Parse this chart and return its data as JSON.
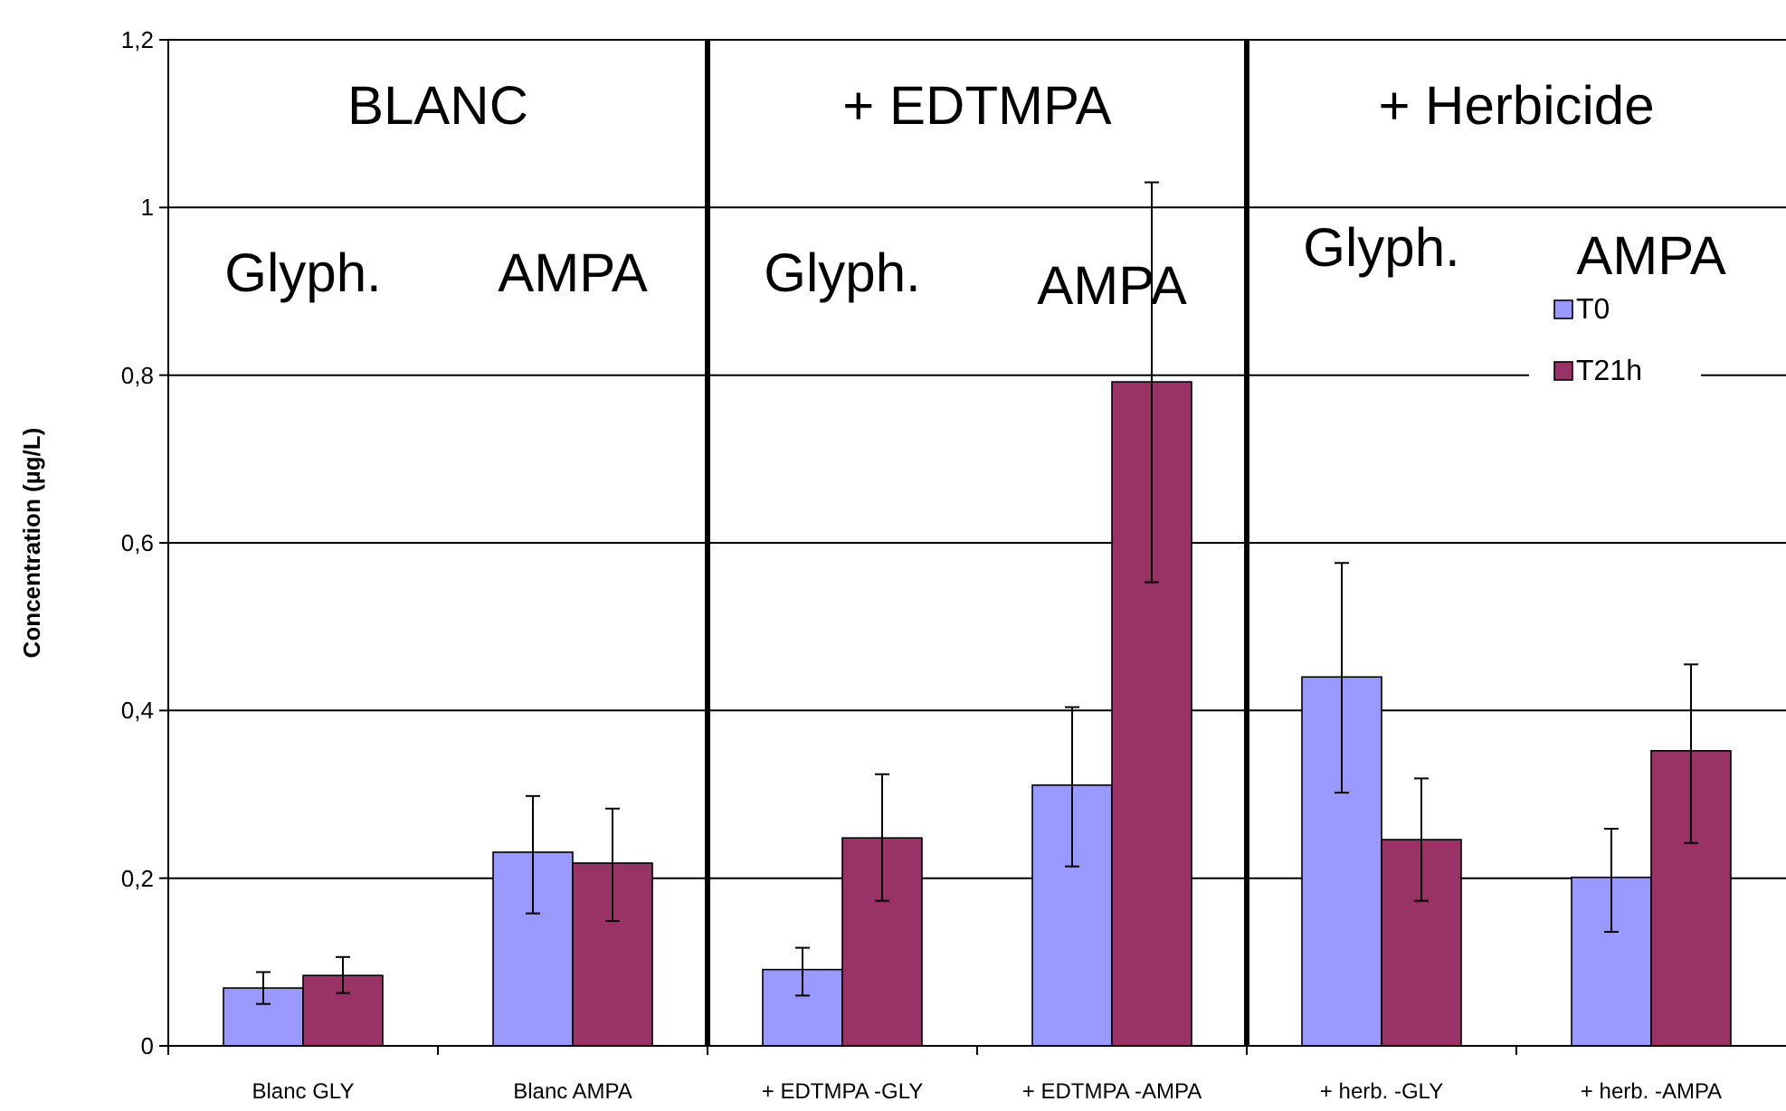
{
  "chart_data": {
    "type": "bar",
    "categories": [
      "Blanc GLY",
      "Blanc AMPA",
      "+ EDTMPA -GLY",
      "+ EDTMPA -AMPA",
      "+ herb. -GLY",
      "+ herb. -AMPA"
    ],
    "series": [
      {
        "name": "T0",
        "color": "#9999ff",
        "values": [
          0.069,
          0.231,
          0.091,
          0.311,
          0.44,
          0.201
        ],
        "errors": [
          [
            0.05,
            0.088
          ],
          [
            0.158,
            0.298
          ],
          [
            0.06,
            0.117
          ],
          [
            0.214,
            0.404
          ],
          [
            0.302,
            0.576
          ],
          [
            0.136,
            0.259
          ]
        ]
      },
      {
        "name": "T21h",
        "color": "#993366",
        "values": [
          0.084,
          0.218,
          0.248,
          0.792,
          0.246,
          0.352
        ],
        "errors": [
          [
            0.063,
            0.106
          ],
          [
            0.149,
            0.283
          ],
          [
            0.173,
            0.324
          ],
          [
            0.553,
            1.03
          ],
          [
            0.173,
            0.319
          ],
          [
            0.242,
            0.455
          ]
        ]
      }
    ],
    "ylabel": "Concentration  (µg/L)",
    "ylim": [
      0,
      1.2
    ],
    "yticks": [
      {
        "value": 0,
        "label": "0"
      },
      {
        "value": 0.2,
        "label": "0,2"
      },
      {
        "value": 0.4,
        "label": "0,4"
      },
      {
        "value": 0.6,
        "label": "0,6"
      },
      {
        "value": 0.8,
        "label": "0,8"
      },
      {
        "value": 1,
        "label": "1"
      },
      {
        "value": 1.2,
        "label": "1,2"
      }
    ],
    "grid": "y",
    "legend": "top right",
    "annotations": [
      "BLANC",
      "+ EDTMPA",
      "+ Herbicide",
      "Glyph.",
      "AMPA",
      "Glyph.",
      "AMPA",
      "Glyph.",
      "AMPA"
    ]
  }
}
